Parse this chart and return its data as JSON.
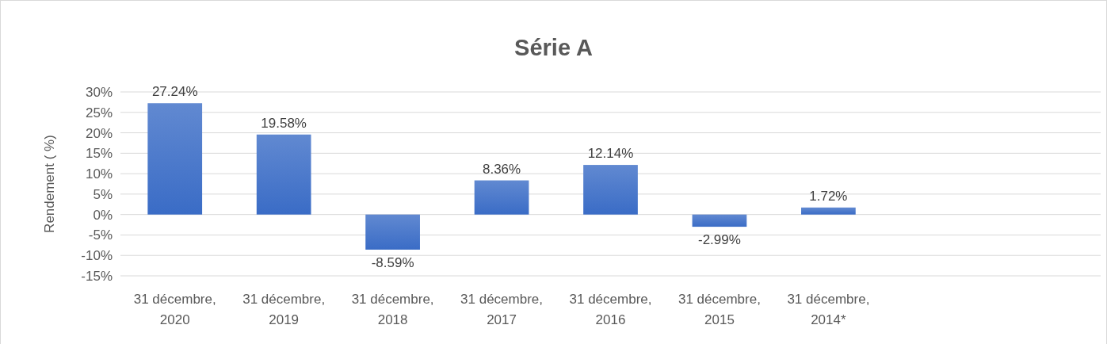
{
  "chart_data": {
    "type": "bar",
    "title": "Série A",
    "ylabel": "Rendement ( %)",
    "categories": [
      "31 décembre, 2020",
      "31 décembre, 2019",
      "31 décembre, 2018",
      "31 décembre, 2017",
      "31 décembre, 2016",
      "31 décembre, 2015",
      "31 décembre, 2014*",
      null,
      null
    ],
    "values": [
      27.24,
      19.58,
      -8.59,
      8.36,
      12.14,
      -2.99,
      1.72,
      null,
      null
    ],
    "value_labels": [
      "27.24%",
      "19.58%",
      "-8.59%",
      "8.36%",
      "12.14%",
      "-2.99%",
      "1.72%",
      null,
      null
    ],
    "color": "#3a6cc6",
    "ylim": [
      -15,
      30
    ],
    "yticks": [
      {
        "value": -15,
        "label": "-15%"
      },
      {
        "value": -10,
        "label": "-10%"
      },
      {
        "value": -5,
        "label": "-5%"
      },
      {
        "value": 0,
        "label": "0%"
      },
      {
        "value": 5,
        "label": "5%"
      },
      {
        "value": 10,
        "label": "10%"
      },
      {
        "value": 15,
        "label": "15%"
      },
      {
        "value": 20,
        "label": "20%"
      },
      {
        "value": 25,
        "label": "25%"
      },
      {
        "value": 30,
        "label": "30%"
      }
    ],
    "grid": "y"
  }
}
